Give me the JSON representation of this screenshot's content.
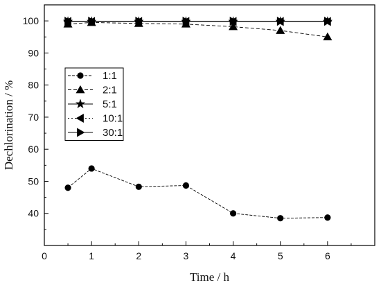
{
  "chart_data": {
    "type": "line",
    "xlabel": "Time / h",
    "ylabel": "Dechlorination / %",
    "xlim": [
      0,
      7
    ],
    "ylim": [
      30,
      105
    ],
    "xticks": [
      0,
      1,
      2,
      3,
      4,
      5,
      6
    ],
    "yticks": [
      40,
      50,
      60,
      70,
      80,
      90,
      100
    ],
    "grid": false,
    "legend_position": "middle-left",
    "series": [
      {
        "name": "1:1",
        "marker": "circle",
        "dash": "4,2",
        "x": [
          0.5,
          1,
          2,
          3,
          4,
          5,
          6
        ],
        "y": [
          48.0,
          54.0,
          48.3,
          48.7,
          40.0,
          38.5,
          38.7
        ]
      },
      {
        "name": "2:1",
        "marker": "triangle-up",
        "dash": "5,3",
        "x": [
          0.5,
          1,
          2,
          3,
          4,
          5,
          6
        ],
        "y": [
          99.0,
          99.5,
          99.2,
          99.0,
          98.2,
          97.0,
          95.0
        ]
      },
      {
        "name": "5:1",
        "marker": "star",
        "dash": "",
        "x": [
          0.5,
          1,
          2,
          3,
          4,
          5,
          6
        ],
        "y": [
          99.8,
          99.8,
          99.8,
          99.8,
          99.8,
          99.8,
          99.8
        ]
      },
      {
        "name": "10:1",
        "marker": "triangle-left",
        "dash": "2,3",
        "x": [
          0.5,
          1,
          2,
          3,
          4,
          5,
          6
        ],
        "y": [
          99.8,
          99.8,
          99.8,
          99.8,
          99.8,
          99.8,
          99.8
        ]
      },
      {
        "name": "30:1",
        "marker": "triangle-right",
        "dash": "",
        "x": [
          0.5,
          1,
          2,
          3,
          4,
          5,
          6
        ],
        "y": [
          99.9,
          99.9,
          99.9,
          99.9,
          99.9,
          99.9,
          99.9
        ]
      }
    ]
  }
}
